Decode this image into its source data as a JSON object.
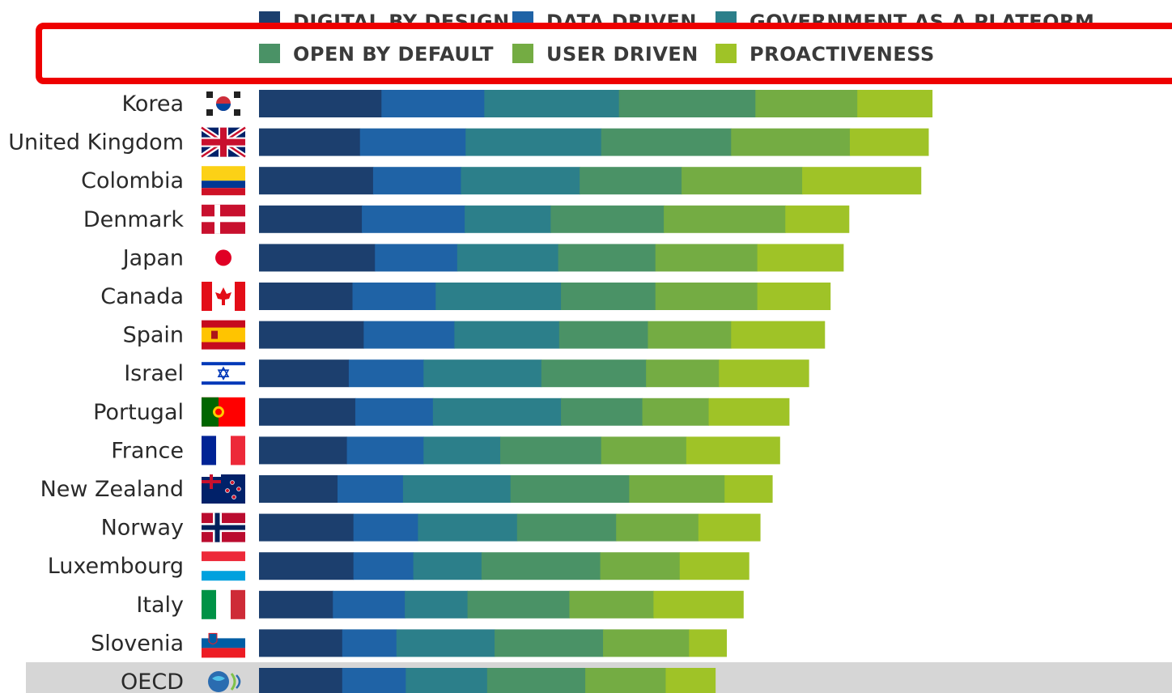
{
  "chart_data": {
    "type": "bar",
    "orientation": "horizontal",
    "stacked": true,
    "categories": [
      "Korea",
      "United Kingdom",
      "Colombia",
      "Denmark",
      "Japan",
      "Canada",
      "Spain",
      "Israel",
      "Portugal",
      "France",
      "New Zealand",
      "Norway",
      "Luxembourg",
      "Italy",
      "Slovenia",
      "OECD"
    ],
    "series": [
      {
        "name": "DIGITAL BY DESIGN",
        "color": "#1c3f6e",
        "values": [
          0.131,
          0.108,
          0.122,
          0.11,
          0.124,
          0.1,
          0.112,
          0.096,
          0.103,
          0.094,
          0.084,
          0.101,
          0.101,
          0.079,
          0.089,
          0.089
        ]
      },
      {
        "name": "DATA DRIVEN",
        "color": "#1f63a6",
        "values": [
          0.11,
          0.113,
          0.094,
          0.11,
          0.088,
          0.089,
          0.097,
          0.08,
          0.083,
          0.082,
          0.07,
          0.069,
          0.064,
          0.077,
          0.058,
          0.068
        ]
      },
      {
        "name": "GOVERNMENT AS A PLATFORM",
        "color": "#2c7f8a",
        "values": [
          0.144,
          0.145,
          0.127,
          0.092,
          0.108,
          0.134,
          0.112,
          0.126,
          0.137,
          0.082,
          0.115,
          0.106,
          0.073,
          0.067,
          0.105,
          0.087
        ]
      },
      {
        "name": "OPEN BY DEFAULT",
        "color": "#4a9266",
        "values": [
          0.146,
          0.139,
          0.109,
          0.121,
          0.104,
          0.101,
          0.095,
          0.112,
          0.087,
          0.108,
          0.127,
          0.106,
          0.127,
          0.109,
          0.116,
          0.105
        ]
      },
      {
        "name": "USER DRIVEN",
        "color": "#74ac43",
        "values": [
          0.109,
          0.127,
          0.129,
          0.13,
          0.109,
          0.109,
          0.089,
          0.078,
          0.071,
          0.091,
          0.102,
          0.088,
          0.085,
          0.09,
          0.092,
          0.086
        ]
      },
      {
        "name": "PROACTIVENESS",
        "color": "#9fc327",
        "values": [
          0.08,
          0.084,
          0.127,
          0.068,
          0.092,
          0.078,
          0.1,
          0.096,
          0.086,
          0.1,
          0.051,
          0.066,
          0.074,
          0.096,
          0.04,
          0.053
        ]
      }
    ],
    "highlighted_category": "OECD",
    "visible_legend_rows": [
      [
        "OPEN BY DEFAULT",
        "USER DRIVEN",
        "PROACTIVENESS"
      ]
    ],
    "partially_visible_legend_rows": [
      [
        "DIGITAL BY DESIGN",
        "DATA DRIVEN",
        "GOVERNMENT AS A PLATFORM"
      ]
    ],
    "legend_placement": "top",
    "grid": false
  },
  "flags": [
    "kr",
    "gb",
    "co",
    "dk",
    "jp",
    "ca",
    "es",
    "il",
    "pt",
    "fr",
    "nz",
    "no",
    "lu",
    "it",
    "si",
    "oecd"
  ],
  "colors": {
    "highlight_frame": "#ee0000",
    "oecd_row_band": "#d6d6d6",
    "label_text": "#2a2a2a",
    "legend_text": "#3a3a3a"
  }
}
